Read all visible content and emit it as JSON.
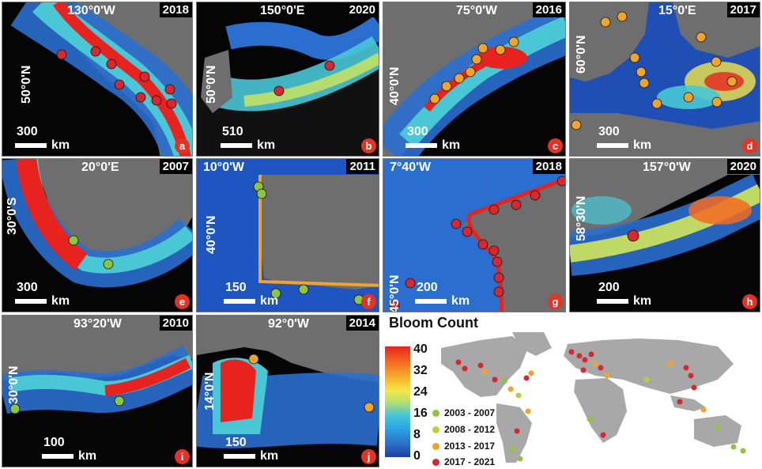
{
  "panels": [
    {
      "id": "a",
      "coord_x": "130°0'W",
      "coord_y": "50°0'N",
      "year": "2018",
      "scale": "300",
      "unit": "km"
    },
    {
      "id": "b",
      "coord_x": "150°0'E",
      "coord_y": "50°0'N",
      "year": "2020",
      "scale": "510",
      "unit": "km"
    },
    {
      "id": "c",
      "coord_x": "75°0'W",
      "coord_y": "40°0'N",
      "year": "2016",
      "scale": "300",
      "unit": "km"
    },
    {
      "id": "d",
      "coord_x": "15°0'E",
      "coord_y": "60°0'N",
      "year": "2017",
      "scale": "300",
      "unit": "km"
    },
    {
      "id": "e",
      "coord_x": "20°0'E",
      "coord_y": "30°0'S",
      "year": "2007",
      "scale": "300",
      "unit": "km"
    },
    {
      "id": "f",
      "coord_x": "10°0'W",
      "coord_y": "40°0'N",
      "year": "2011",
      "scale": "150",
      "unit": "km"
    },
    {
      "id": "g",
      "coord_x": "7°40'W",
      "coord_y": "45°0'N",
      "year": "2018",
      "scale": "200",
      "unit": "km"
    },
    {
      "id": "h",
      "coord_x": "157°0'W",
      "coord_y": "58°30'N",
      "year": "2020",
      "scale": "200",
      "unit": "km"
    },
    {
      "id": "i",
      "coord_x": "93°20'W",
      "coord_y": "30°0'N",
      "year": "2010",
      "scale": "100",
      "unit": "km"
    },
    {
      "id": "j",
      "coord_x": "92°0'W",
      "coord_y": "14°0'N",
      "year": "2014",
      "scale": "150",
      "unit": "km"
    }
  ],
  "legend": {
    "title": "Bloom Count",
    "ticks": [
      "40",
      "32",
      "24",
      "16",
      "8",
      "0"
    ],
    "periods": [
      {
        "label": "2003 - 2007",
        "color": "#8cc63f"
      },
      {
        "label": "2008 - 2012",
        "color": "#b5d334"
      },
      {
        "label": "2013 - 2017",
        "color": "#f2a32a"
      },
      {
        "label": "2017 - 2021",
        "color": "#d7282f"
      }
    ]
  },
  "colors": {
    "land": "#6e6e6e",
    "ocean": "#050505",
    "worldmap_land": "#a8a8a8"
  }
}
